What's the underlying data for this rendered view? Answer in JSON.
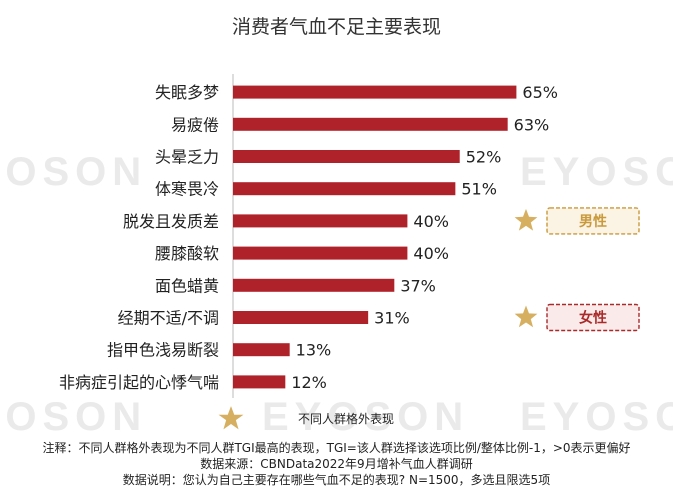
{
  "chart_data": {
    "type": "bar",
    "orientation": "horizontal",
    "title": "消费者气血不足主要表现",
    "categories": [
      "失眠多梦",
      "易疲倦",
      "头晕乏力",
      "体寒畏冷",
      "脱发且发质差",
      "腰膝酸软",
      "面色蜡黄",
      "经期不适/不调",
      "指甲色浅易断裂",
      "非病症引起的心悸气喘"
    ],
    "values": [
      65,
      63,
      52,
      51,
      40,
      40,
      37,
      31,
      13,
      12
    ],
    "value_labels": [
      "65%",
      "63%",
      "52%",
      "51%",
      "40%",
      "40%",
      "37%",
      "31%",
      "13%",
      "12%"
    ],
    "unit": "%",
    "xlim": [
      0,
      100
    ],
    "bar_color": "#b0222a",
    "annotations": [
      {
        "category_index": 4,
        "label": "男性",
        "color": "#c9993a",
        "fill": "#fbf3e4",
        "icon": "star-icon"
      },
      {
        "category_index": 7,
        "label": "女性",
        "color": "#a82a2a",
        "fill": "#fbeaea",
        "icon": "star-icon"
      }
    ]
  },
  "watermark": "EYOSON",
  "legend": {
    "text": "不同人群格外表现",
    "icon": "star-icon",
    "star_color": "#d6b060"
  },
  "notes": {
    "line1": "注释：不同人群格外表现为不同人群TGI最高的表现，TGI=该人群选择该选项比例/整体比例-1，>0表示更偏好",
    "line2": "数据来源：CBNData2022年9月增补气血人群调研",
    "line3": "数据说明：您认为自己主要存在哪些气血不足的表现? N=1500，多选且限选5项"
  }
}
